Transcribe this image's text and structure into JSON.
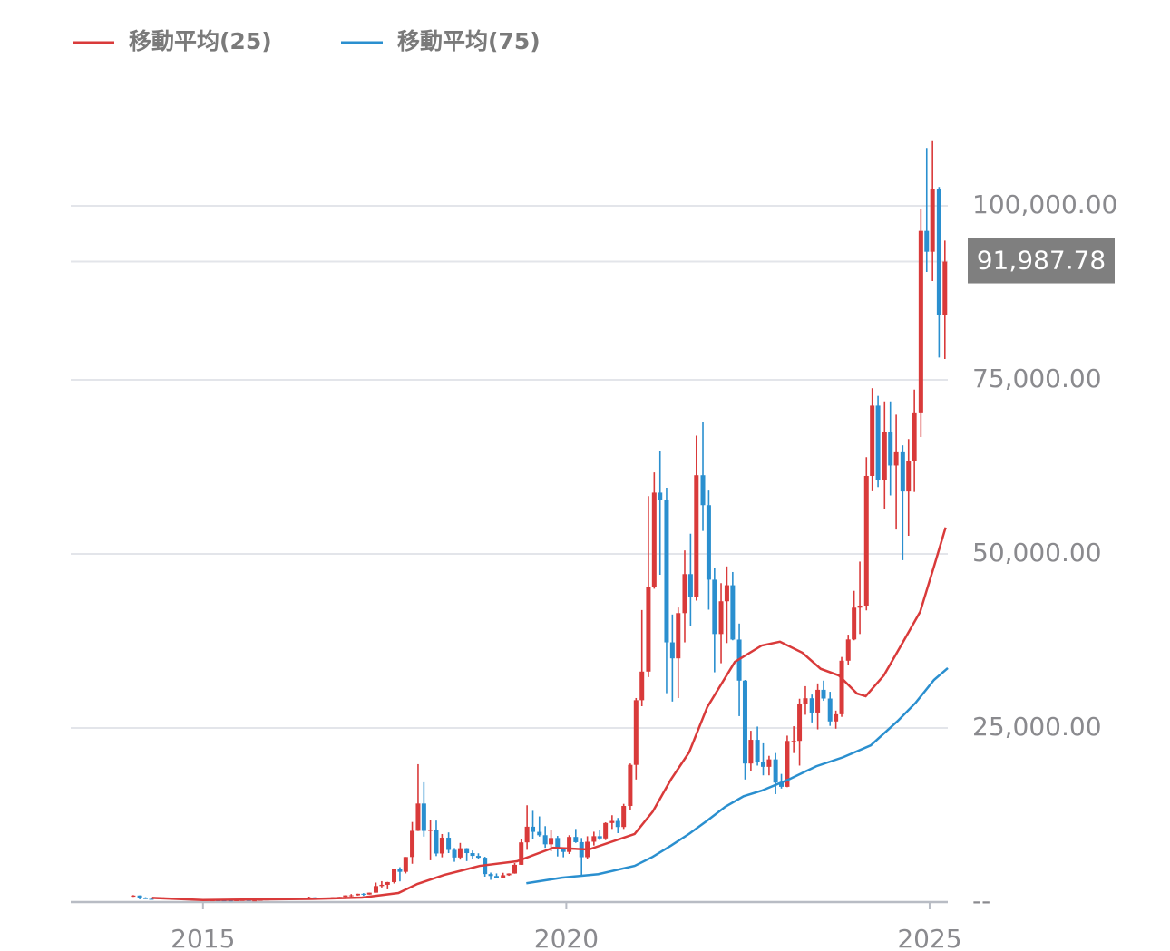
{
  "chart_data": {
    "type": "candlestick",
    "up_color": "#d93a3a",
    "down_color": "#2a8fcf",
    "legend": "top-left",
    "grid": true,
    "xlim": [
      2013.18,
      2025.25
    ],
    "xticks": [
      2015,
      2020,
      2025
    ],
    "ylim": [
      0,
      110000
    ],
    "yticks": [
      {
        "value": 0,
        "label": "--"
      },
      {
        "value": 25000,
        "label": "25,000.00"
      },
      {
        "value": 50000,
        "label": "50,000.00"
      },
      {
        "value": 75000,
        "label": "75,000.00"
      },
      {
        "value": 100000,
        "label": "100,000.00"
      }
    ],
    "price_marker": {
      "value": 91987.78,
      "label": "91,987.78"
    },
    "candles": {
      "x": [
        2014.04,
        2014.13,
        2014.21,
        2014.29,
        2014.38,
        2014.46,
        2014.54,
        2014.63,
        2014.71,
        2014.79,
        2014.88,
        2014.96,
        2015.04,
        2015.13,
        2015.21,
        2015.29,
        2015.38,
        2015.46,
        2015.54,
        2015.63,
        2015.71,
        2015.79,
        2015.88,
        2015.96,
        2016.04,
        2016.13,
        2016.21,
        2016.29,
        2016.38,
        2016.46,
        2016.54,
        2016.63,
        2016.71,
        2016.79,
        2016.88,
        2016.96,
        2017.04,
        2017.13,
        2017.21,
        2017.29,
        2017.38,
        2017.46,
        2017.54,
        2017.63,
        2017.71,
        2017.79,
        2017.88,
        2017.96,
        2018.04,
        2018.13,
        2018.21,
        2018.29,
        2018.38,
        2018.46,
        2018.54,
        2018.63,
        2018.71,
        2018.79,
        2018.88,
        2018.96,
        2019.04,
        2019.13,
        2019.21,
        2019.29,
        2019.38,
        2019.46,
        2019.54,
        2019.63,
        2019.71,
        2019.79,
        2019.88,
        2019.96,
        2020.04,
        2020.13,
        2020.21,
        2020.29,
        2020.38,
        2020.46,
        2020.54,
        2020.63,
        2020.71,
        2020.79,
        2020.88,
        2020.96,
        2021.04,
        2021.13,
        2021.21,
        2021.29,
        2021.38,
        2021.46,
        2021.54,
        2021.63,
        2021.71,
        2021.79,
        2021.88,
        2021.96,
        2022.04,
        2022.13,
        2022.21,
        2022.29,
        2022.38,
        2022.46,
        2022.54,
        2022.63,
        2022.71,
        2022.79,
        2022.88,
        2022.96,
        2023.04,
        2023.13,
        2023.21,
        2023.29,
        2023.38,
        2023.46,
        2023.54,
        2023.63,
        2023.71,
        2023.79,
        2023.88,
        2023.96,
        2024.04,
        2024.13,
        2024.21,
        2024.29,
        2024.38,
        2024.46,
        2024.54,
        2024.63,
        2024.71,
        2024.79,
        2024.88,
        2024.96,
        2025.04,
        2025.13,
        2025.21
      ],
      "open": [
        770,
        940,
        570,
        460,
        445,
        630,
        640,
        590,
        480,
        390,
        340,
        380,
        320,
        220,
        255,
        245,
        235,
        230,
        265,
        285,
        230,
        236,
        313,
        378,
        430,
        370,
        438,
        416,
        448,
        530,
        675,
        625,
        575,
        610,
        700,
        745,
        965,
        970,
        1190,
        1080,
        1350,
        2300,
        2480,
        2870,
        4740,
        4340,
        6470,
        10230,
        14150,
        10220,
        10400,
        6970,
        9240,
        7490,
        6400,
        7730,
        7030,
        6630,
        6370,
        4020,
        3740,
        3460,
        3850,
        4100,
        5350,
        8570,
        10820,
        10080,
        9600,
        8290,
        9200,
        7570,
        7200,
        9350,
        8600,
        6440,
        8660,
        9460,
        9140,
        11350,
        11650,
        10780,
        13800,
        19700,
        28990,
        33100,
        45200,
        58800,
        57700,
        37300,
        35000,
        41500,
        47100,
        43800,
        61300,
        57000,
        46300,
        38500,
        43200,
        45500,
        37700,
        31800,
        19900,
        23300,
        20050,
        19420,
        20490,
        17160,
        16550,
        23140,
        23150,
        28480,
        29270,
        27220,
        30480,
        29230,
        25940,
        26970,
        34660,
        37720,
        42280,
        42580,
        61200,
        71300,
        60600,
        67500,
        62700,
        64600,
        58970,
        63300,
        70200,
        96400,
        93400,
        102400,
        84350
      ],
      "high": [
        1000,
        960,
        700,
        540,
        640,
        670,
        650,
        600,
        500,
        415,
        460,
        385,
        320,
        265,
        300,
        260,
        250,
        270,
        320,
        285,
        245,
        330,
        500,
        470,
        460,
        445,
        440,
        470,
        550,
        780,
        680,
        630,
        615,
        715,
        750,
        980,
        1150,
        1200,
        1290,
        1360,
        2800,
        3000,
        2900,
        4750,
        5000,
        6470,
        11500,
        19800,
        17200,
        11800,
        11700,
        9770,
        10000,
        7760,
        8490,
        7760,
        7410,
        7000,
        6500,
        4230,
        4110,
        4200,
        4130,
        5600,
        9000,
        13900,
        13100,
        12300,
        10900,
        10400,
        9500,
        7750,
        9600,
        10500,
        9200,
        9450,
        10100,
        10400,
        11450,
        12470,
        12080,
        14100,
        19900,
        29300,
        41950,
        58300,
        61700,
        64800,
        59500,
        41300,
        42300,
        50500,
        52900,
        67000,
        69000,
        59100,
        48000,
        45800,
        48200,
        47400,
        40000,
        31900,
        24600,
        25200,
        22800,
        21000,
        21400,
        18400,
        23900,
        25250,
        29200,
        31000,
        29800,
        31400,
        31800,
        30200,
        27500,
        35200,
        38400,
        44700,
        48900,
        63900,
        73800,
        72700,
        71900,
        71900,
        70000,
        65600,
        66500,
        73600,
        99600,
        108300,
        109400,
        102700,
        95000
      ],
      "low": [
        750,
        400,
        440,
        340,
        440,
        560,
        570,
        440,
        370,
        290,
        320,
        300,
        170,
        210,
        235,
        215,
        225,
        215,
        255,
        200,
        225,
        236,
        310,
        350,
        360,
        365,
        400,
        415,
        440,
        530,
        600,
        530,
        575,
        605,
        690,
        740,
        750,
        930,
        900,
        1070,
        1350,
        2100,
        1830,
        2670,
        2970,
        4110,
        5500,
        10200,
        9400,
        6000,
        6600,
        6430,
        7030,
        5780,
        6100,
        5880,
        6140,
        6200,
        3650,
        3190,
        3400,
        3400,
        3770,
        4070,
        5340,
        7500,
        9100,
        9400,
        7800,
        7300,
        6550,
        6430,
        6900,
        8500,
        3800,
        6200,
        8120,
        8900,
        8900,
        10500,
        9900,
        10500,
        13200,
        17600,
        28130,
        32300,
        45000,
        47000,
        30000,
        28800,
        29300,
        37300,
        39600,
        43300,
        53300,
        42000,
        33000,
        34300,
        37200,
        37600,
        26700,
        17600,
        18800,
        19600,
        18200,
        18200,
        15500,
        16300,
        16500,
        21400,
        19600,
        26900,
        25800,
        24800,
        28900,
        25300,
        24900,
        26600,
        34100,
        37600,
        38500,
        41900,
        59000,
        59600,
        56500,
        58400,
        53500,
        49100,
        52600,
        58900,
        66800,
        90500,
        89200,
        78200,
        78000
      ],
      "close": [
        940,
        570,
        460,
        445,
        630,
        640,
        590,
        480,
        390,
        340,
        380,
        320,
        220,
        255,
        245,
        235,
        230,
        265,
        285,
        230,
        236,
        313,
        378,
        430,
        370,
        438,
        416,
        448,
        530,
        675,
        625,
        575,
        610,
        700,
        745,
        965,
        970,
        1190,
        1080,
        1350,
        2300,
        2480,
        2870,
        4740,
        4340,
        6470,
        10230,
        14150,
        10220,
        10400,
        6970,
        9240,
        7490,
        6400,
        7730,
        7030,
        6630,
        6370,
        4020,
        3740,
        3460,
        3850,
        4100,
        5350,
        8570,
        10820,
        10080,
        9600,
        8290,
        9200,
        7570,
        7200,
        9350,
        8600,
        6440,
        8660,
        9460,
        9140,
        11350,
        11650,
        10780,
        13800,
        19700,
        28990,
        33100,
        45200,
        58800,
        57700,
        37300,
        35000,
        41500,
        47100,
        43800,
        61300,
        57000,
        46300,
        38500,
        43200,
        45500,
        37700,
        31800,
        19900,
        23300,
        20050,
        19420,
        20490,
        17160,
        16550,
        23140,
        23150,
        28480,
        29270,
        27220,
        30480,
        29230,
        25940,
        26970,
        34660,
        37720,
        42280,
        42580,
        61200,
        71300,
        60600,
        67500,
        62700,
        64600,
        58970,
        63300,
        70200,
        96400,
        93400,
        102400,
        84350,
        91987.78
      ]
    },
    "series": [
      {
        "name": "移動平均(25)",
        "color": "#d93a3a",
        "x": [
          2014.3,
          2015.0,
          2016.5,
          2017.19,
          2017.69,
          2017.95,
          2018.32,
          2018.81,
          2019.32,
          2019.82,
          2020.31,
          2020.94,
          2021.19,
          2021.44,
          2021.69,
          2021.94,
          2022.32,
          2022.69,
          2022.94,
          2023.25,
          2023.5,
          2023.75,
          2024.0,
          2024.12,
          2024.37,
          2024.62,
          2024.87,
          2025.06,
          2025.22
        ],
        "values": [
          600,
          300,
          450,
          650,
          1300,
          2600,
          3900,
          5200,
          5860,
          7800,
          7550,
          9770,
          13000,
          17600,
          21500,
          28000,
          34500,
          36850,
          37400,
          35800,
          33500,
          32550,
          29950,
          29560,
          32550,
          37100,
          41700,
          48200,
          53800
        ]
      },
      {
        "name": "移動平均(75)",
        "color": "#2a8fcf",
        "x": [
          2019.45,
          2019.94,
          2020.44,
          2020.94,
          2021.19,
          2021.44,
          2021.69,
          2021.94,
          2022.19,
          2022.44,
          2022.69,
          2023.06,
          2023.44,
          2023.81,
          2024.19,
          2024.56,
          2024.81,
          2025.06,
          2025.25
        ],
        "values": [
          2700,
          3500,
          4000,
          5200,
          6500,
          8100,
          9800,
          11700,
          13700,
          15200,
          16000,
          17600,
          19500,
          20800,
          22500,
          26000,
          28650,
          31900,
          33600
        ]
      }
    ]
  }
}
